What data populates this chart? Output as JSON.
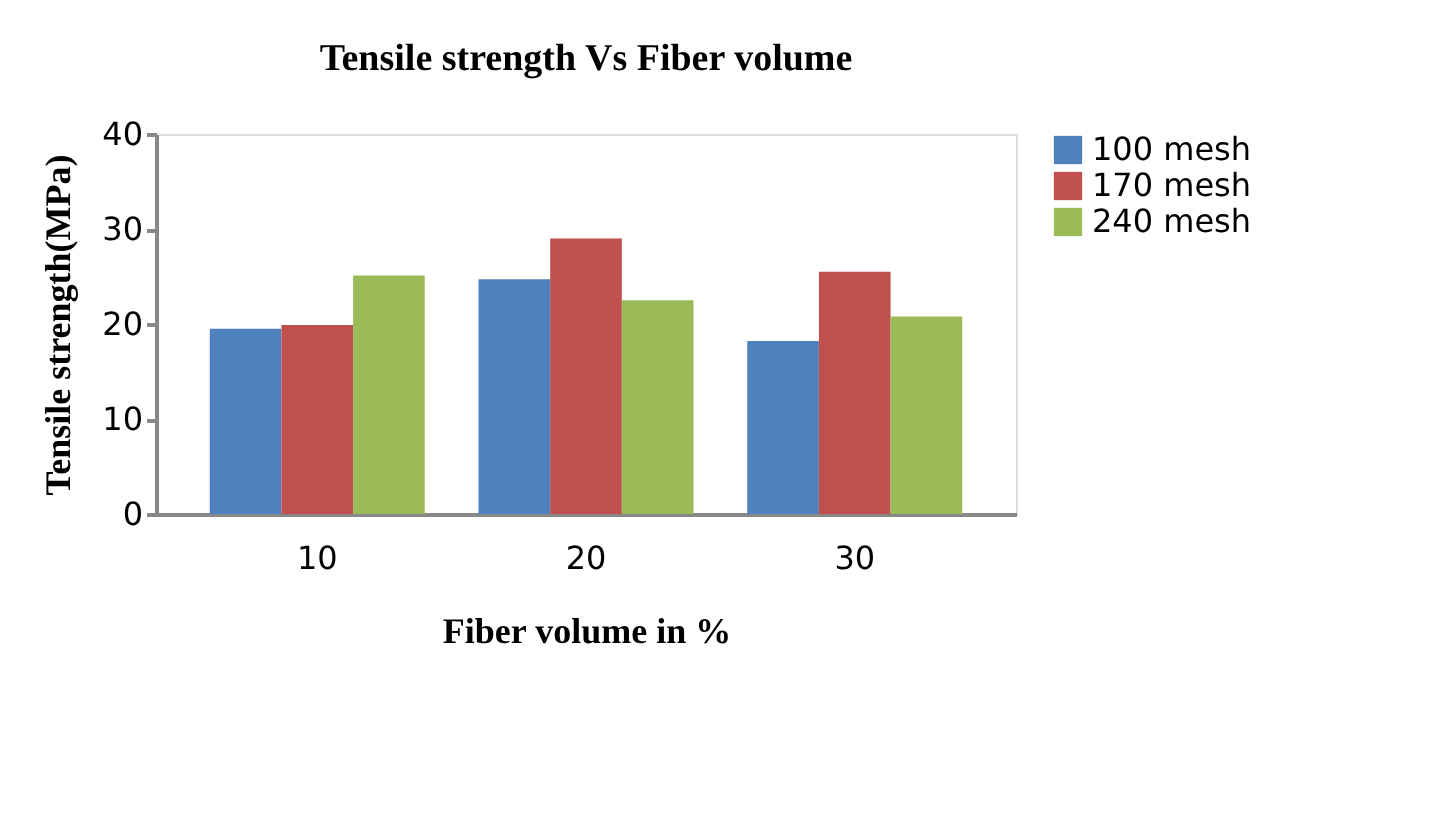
{
  "chart_data": {
    "type": "bar",
    "title": "Tensile strength  Vs Fiber volume",
    "xlabel": "Fiber volume in %",
    "ylabel": "Tensile strength(MPa)",
    "categories": [
      "10",
      "20",
      "30"
    ],
    "series": [
      {
        "name": "100 mesh",
        "color": "#4f81bd",
        "values": [
          19.5,
          24.7,
          18.2
        ]
      },
      {
        "name": "170 mesh",
        "color": "#c0504d",
        "values": [
          19.9,
          29.0,
          25.5
        ]
      },
      {
        "name": "240 mesh",
        "color": "#9bbb59",
        "values": [
          25.1,
          22.5,
          20.8
        ]
      }
    ],
    "ylim": [
      0,
      40
    ],
    "yticks": [
      0,
      10,
      20,
      30,
      40
    ],
    "grid": false,
    "legend": "right"
  }
}
